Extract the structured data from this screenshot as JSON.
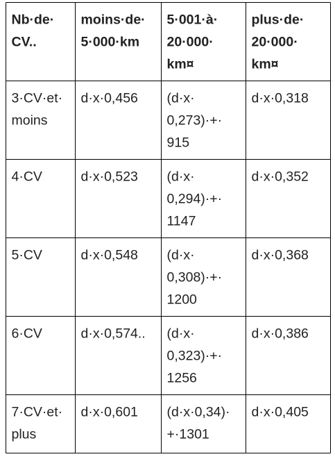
{
  "table": {
    "rows": [
      [
        [
          "Nb·de·",
          "CV.."
        ],
        [
          "moins·de·",
          "5·000·km"
        ],
        [
          "5·001·à·",
          "20·000·",
          "km¤"
        ],
        [
          "plus·de·",
          "20·000·",
          "km¤"
        ]
      ],
      [
        [
          "3·CV·et·",
          "moins"
        ],
        [
          "d·x·0,456"
        ],
        [
          "(d·x·",
          "0,273)·+·",
          "915"
        ],
        [
          "d·x·0,318"
        ]
      ],
      [
        [
          "4·CV"
        ],
        [
          "d·x·0,523"
        ],
        [
          "(d·x·",
          "0,294)·+·",
          "1147"
        ],
        [
          "d·x·0,352"
        ]
      ],
      [
        [
          "5·CV"
        ],
        [
          "d·x·0,548"
        ],
        [
          "(d·x·",
          "0,308)·+·",
          "1200"
        ],
        [
          "d·x·0,368"
        ]
      ],
      [
        [
          "6·CV"
        ],
        [
          "d·x·0,574.."
        ],
        [
          "(d·x·",
          "0,323)·+·",
          "1256"
        ],
        [
          "d·x·0,386"
        ]
      ],
      [
        [
          "7·CV·et·",
          "plus"
        ],
        [
          "d·x·0,601"
        ],
        [
          "(d·x·0,34)·",
          "+·1301"
        ],
        [
          "d·x·0,405"
        ]
      ]
    ]
  }
}
